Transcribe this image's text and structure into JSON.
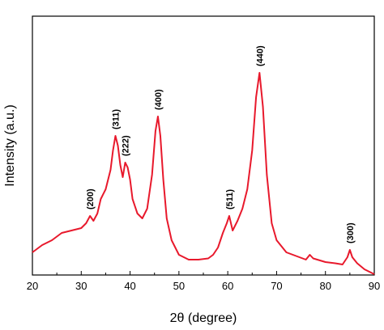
{
  "chart_data": {
    "type": "line",
    "xlabel": "2θ (degree)",
    "ylabel": "Intensity (a.u.)",
    "xlim": [
      20,
      90
    ],
    "ylim": [
      0,
      100
    ],
    "xticks": [
      20,
      30,
      40,
      50,
      60,
      70,
      80,
      90
    ],
    "yticks_shown": false,
    "grid": false,
    "legend": "none",
    "series": [
      {
        "color": "#e8192c",
        "x": [
          20,
          22,
          24,
          26,
          28,
          30,
          31,
          31.8,
          32.5,
          33.3,
          34,
          35,
          36,
          36.5,
          37,
          37.5,
          38,
          38.5,
          39,
          39.5,
          40,
          40.5,
          41.5,
          42.5,
          43.5,
          44.5,
          45.2,
          45.7,
          46.2,
          46.8,
          47.5,
          48.5,
          50,
          52,
          54,
          56,
          57,
          58,
          59,
          59.8,
          60.3,
          61,
          62,
          63,
          64,
          65,
          65.8,
          66.5,
          67.2,
          68,
          69,
          70,
          72,
          74,
          76,
          76.8,
          77.5,
          80,
          82,
          83.5,
          84.5,
          85,
          85.5,
          86.5,
          88,
          89,
          90
        ],
        "y": [
          6,
          9,
          11,
          14,
          15,
          16,
          18,
          21,
          19,
          22,
          28,
          32,
          40,
          48,
          54,
          50,
          42,
          37,
          43,
          41,
          36,
          28,
          22,
          20,
          24,
          38,
          56,
          62,
          54,
          36,
          20,
          11,
          5,
          3,
          3,
          3.5,
          5,
          8,
          14,
          18,
          21,
          15,
          19,
          24,
          32,
          48,
          70,
          80,
          66,
          38,
          18,
          11,
          6,
          4.5,
          3,
          5,
          3.5,
          2,
          1.5,
          1,
          4,
          7,
          4,
          1.5,
          -1,
          -2,
          -3
        ]
      }
    ],
    "annotations": [
      {
        "text": "(200)",
        "x": 31.8,
        "y": 21
      },
      {
        "text": "(311)",
        "x": 37.0,
        "y": 54
      },
      {
        "text": "(222)",
        "x": 39.0,
        "y": 43
      },
      {
        "text": "(400)",
        "x": 45.7,
        "y": 62
      },
      {
        "text": "(511)",
        "x": 60.3,
        "y": 21
      },
      {
        "text": "(440)",
        "x": 66.5,
        "y": 80
      },
      {
        "text": "(300)",
        "x": 85.0,
        "y": 7
      }
    ]
  }
}
